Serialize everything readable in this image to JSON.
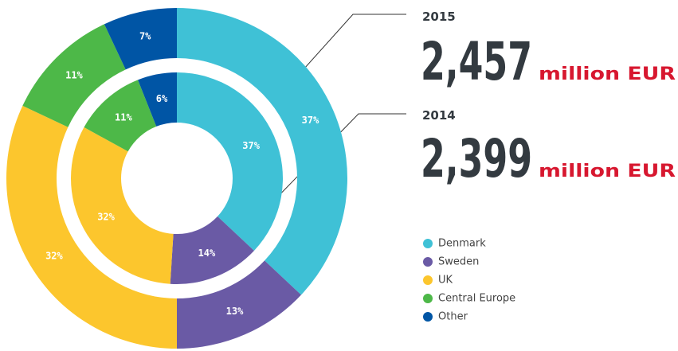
{
  "chart_data": {
    "type": "nested-donut",
    "categories": [
      "Denmark",
      "Sweden",
      "UK",
      "Central Europe",
      "Other"
    ],
    "colors": [
      "#3fc1d6",
      "#6a5aa5",
      "#fcc62d",
      "#4db848",
      "#0055a5"
    ],
    "series": [
      {
        "name": "2015",
        "total": "2,457",
        "unit": "million EUR",
        "values": [
          37,
          13,
          32,
          11,
          7
        ],
        "value_labels": [
          "37%",
          "13%",
          "32%",
          "11%",
          "7%"
        ]
      },
      {
        "name": "2014",
        "total": "2,399",
        "unit": "million EUR",
        "values": [
          37,
          14,
          32,
          11,
          6
        ],
        "value_labels": [
          "37%",
          "14%",
          "32%",
          "11%",
          "6%"
        ]
      }
    ],
    "legend": "bottom-right"
  }
}
